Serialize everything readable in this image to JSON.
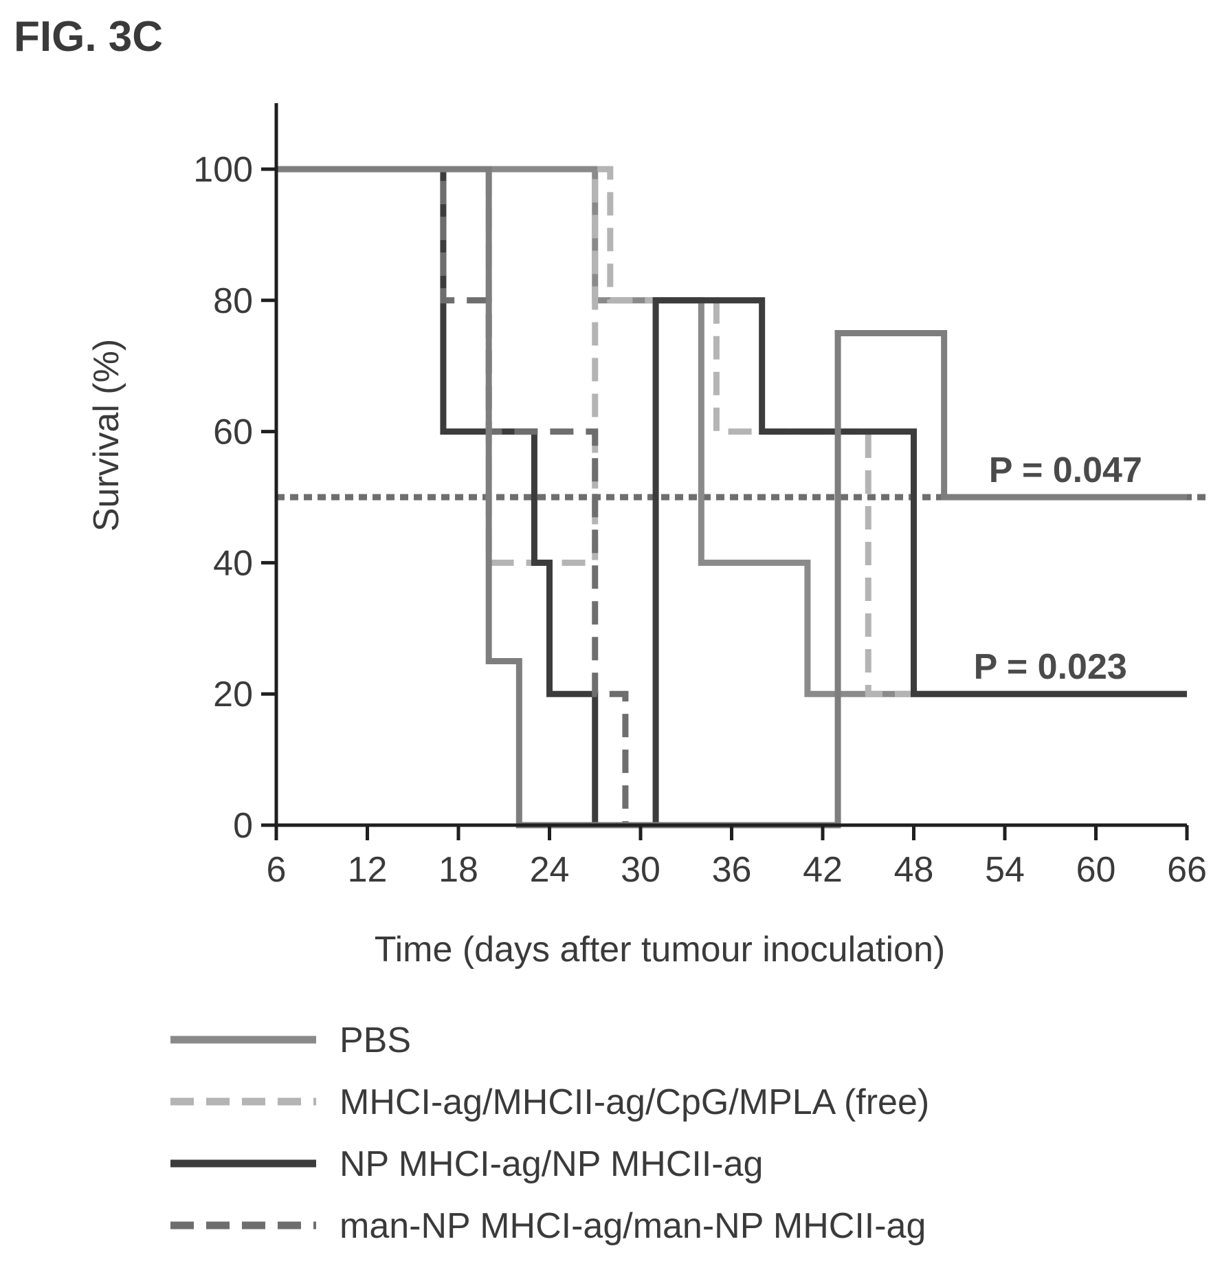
{
  "figure_label": "FIG. 3C",
  "chart_data": {
    "type": "line",
    "step": true,
    "xlabel": "Time (days after tumour inoculation)",
    "ylabel": "Survival (%)",
    "xlim": [
      6,
      66
    ],
    "ylim": [
      0,
      100
    ],
    "xticks": [
      6,
      12,
      18,
      24,
      30,
      36,
      42,
      48,
      54,
      60,
      66
    ],
    "yticks": [
      0,
      20,
      40,
      60,
      80,
      100
    ],
    "grid": false,
    "legend_position": "bottom",
    "reference_line": {
      "y": 50,
      "style": "dotted",
      "color": "#6e6e6e"
    },
    "series": [
      {
        "name": "PBS",
        "color": "#8a8a8a",
        "dash": "solid",
        "x": [
          6,
          27,
          34,
          41,
          66
        ],
        "y": [
          100,
          80,
          40,
          20,
          20
        ]
      },
      {
        "name": "MHCI-ag/MHCII-ag/CpG/MPLA (free)",
        "color": "#b4b4b4",
        "dash": "dashed",
        "x": [
          6,
          20,
          27,
          28,
          35,
          45,
          48
        ],
        "y": [
          100,
          40,
          100,
          80,
          60,
          20,
          20
        ]
      },
      {
        "name": "NP MHCI-ag/NP MHCII-ag",
        "color": "#3c3c3c",
        "dash": "solid",
        "x": [
          6,
          17,
          23,
          24,
          27,
          31,
          38,
          48,
          66
        ],
        "y": [
          100,
          60,
          40,
          20,
          0,
          80,
          60,
          20,
          20
        ]
      },
      {
        "name": "man-NP MHCI-ag/man-NP MHCII-ag",
        "color": "#6e6e6e",
        "dash": "dashed",
        "x": [
          6,
          17,
          20,
          27,
          29
        ],
        "y": [
          100,
          80,
          60,
          20,
          0
        ]
      },
      {
        "name": "",
        "color": "#7e7e7e",
        "dash": "solid",
        "x": [
          6,
          20,
          22,
          43,
          50,
          66
        ],
        "y": [
          100,
          25,
          0,
          75,
          50,
          50
        ]
      }
    ],
    "annotations": [
      {
        "text": "P = 0.047",
        "x": 58,
        "y": 50
      },
      {
        "text": "P = 0.023",
        "x": 57,
        "y": 20
      }
    ]
  }
}
